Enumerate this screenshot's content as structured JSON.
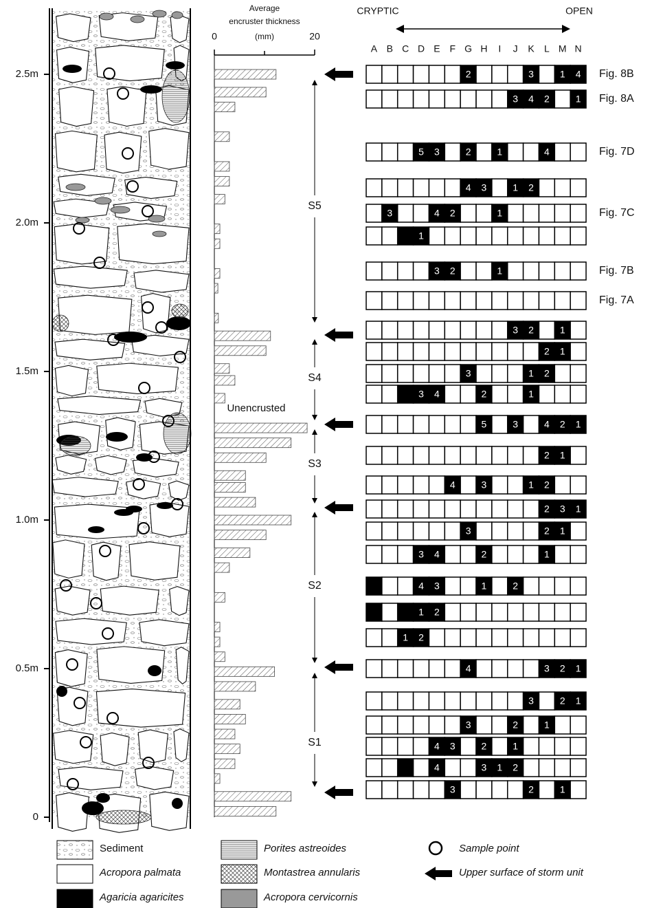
{
  "chart_data": {
    "type": "stratigraphic-figure",
    "depth_axis": {
      "ylim": [
        0,
        2.72
      ],
      "yticks": [
        {
          "value": 2.5,
          "label": "2.5m"
        },
        {
          "value": 2.0,
          "label": "2.0m"
        },
        {
          "value": 1.5,
          "label": "1.5m"
        },
        {
          "value": 1.0,
          "label": "1.0m"
        },
        {
          "value": 0.5,
          "label": "0.5m"
        },
        0
      ]
    },
    "bars": {
      "title_lines": [
        "Average",
        "encruster thickness",
        "(mm)"
      ],
      "xlim": [
        0,
        20
      ],
      "xticks": [
        0,
        20
      ],
      "depths": [
        2.5,
        2.44,
        2.39,
        2.29,
        2.19,
        2.14,
        2.08,
        1.98,
        1.93,
        1.83,
        1.78,
        1.68,
        1.62,
        1.57,
        1.51,
        1.47,
        1.41,
        1.31,
        1.26,
        1.21,
        1.15,
        1.11,
        1.06,
        1.0,
        0.95,
        0.89,
        0.84,
        0.74,
        0.64,
        0.59,
        0.54,
        0.49,
        0.44,
        0.38,
        0.33,
        0.28,
        0.23,
        0.18,
        0.13,
        0.07,
        0.02
      ],
      "values": [
        12.3,
        10.3,
        4.1,
        3.0,
        3.0,
        3.0,
        2.1,
        1.1,
        1.1,
        1.1,
        0.7,
        0.8,
        11.2,
        10.3,
        3.0,
        4.1,
        2.1,
        18.5,
        15.3,
        10.3,
        6.2,
        6.2,
        8.2,
        15.3,
        10.3,
        7.1,
        3.0,
        2.1,
        1.1,
        1.1,
        2.1,
        12.0,
        8.2,
        5.1,
        6.2,
        4.1,
        5.1,
        4.1,
        1.1,
        15.3,
        12.3
      ],
      "annotation": "Unencrusted"
    },
    "grid": {
      "left_label": "CRYPTIC",
      "right_label": "OPEN",
      "columns": [
        "A",
        "B",
        "C",
        "D",
        "E",
        "F",
        "G",
        "H",
        "I",
        "J",
        "K",
        "L",
        "M",
        "N"
      ],
      "rows": [
        {
          "label": "Fig. 8B",
          "black": [
            "G",
            "K",
            "M",
            "N"
          ],
          "ranks": {
            "G": 2,
            "K": 3,
            "M": 1,
            "N": 4
          }
        },
        {
          "label": "Fig. 8A",
          "black": [
            "J",
            "K",
            "L",
            "N"
          ],
          "ranks": {
            "J": 3,
            "K": 4,
            "L": 2,
            "N": 1
          }
        },
        {
          "label": "Fig. 7D",
          "black": [
            "D",
            "E",
            "G",
            "I",
            "L"
          ],
          "ranks": {
            "D": 5,
            "E": 3,
            "G": 2,
            "I": 1,
            "L": 4
          }
        },
        {
          "black": [
            "G",
            "H",
            "J",
            "K"
          ],
          "ranks": {
            "G": 4,
            "H": 3,
            "J": 1,
            "K": 2
          }
        },
        {
          "label": "Fig. 7C",
          "black": [
            "B",
            "E",
            "F",
            "I"
          ],
          "ranks": {
            "B": 3,
            "E": 4,
            "F": 2,
            "I": 1
          }
        },
        {
          "black": [
            "C",
            "D"
          ],
          "ranks": {
            "D": 1
          }
        },
        {
          "label": "Fig. 7B",
          "black": [
            "E",
            "F",
            "I"
          ],
          "ranks": {
            "E": 3,
            "F": 2,
            "I": 1
          }
        },
        {
          "label": "Fig. 7A",
          "black": [],
          "ranks": {}
        },
        {
          "black": [
            "J",
            "K",
            "M"
          ],
          "ranks": {
            "J": 3,
            "K": 2,
            "M": 1
          }
        },
        {
          "black": [
            "L",
            "M"
          ],
          "ranks": {
            "L": 2,
            "M": 1
          }
        },
        {
          "black": [
            "G",
            "K",
            "L"
          ],
          "ranks": {
            "G": 3,
            "K": 1,
            "L": 2
          }
        },
        {
          "black": [
            "C",
            "D",
            "E",
            "H",
            "K"
          ],
          "ranks": {
            "D": 3,
            "E": 4,
            "H": 2,
            "K": 1
          }
        },
        {
          "black": [
            "H",
            "J",
            "L",
            "M",
            "N"
          ],
          "ranks": {
            "H": 5,
            "J": 3,
            "L": 4,
            "M": 2,
            "N": 1
          }
        },
        {
          "black": [
            "L",
            "M"
          ],
          "ranks": {
            "L": 2,
            "M": 1
          }
        },
        {
          "black": [
            "F",
            "H",
            "K",
            "L"
          ],
          "ranks": {
            "F": 4,
            "H": 3,
            "K": 1,
            "L": 2
          }
        },
        {
          "black": [
            "L",
            "M",
            "N"
          ],
          "ranks": {
            "L": 2,
            "M": 3,
            "N": 1
          }
        },
        {
          "black": [
            "G",
            "L",
            "M"
          ],
          "ranks": {
            "G": 3,
            "L": 2,
            "M": 1
          }
        },
        {
          "black": [
            "D",
            "E",
            "H",
            "L"
          ],
          "ranks": {
            "D": 3,
            "E": 4,
            "H": 2,
            "L": 1
          }
        },
        {
          "black": [
            "A",
            "D",
            "E",
            "H",
            "J"
          ],
          "ranks": {
            "D": 4,
            "E": 3,
            "H": 1,
            "J": 2
          }
        },
        {
          "black": [
            "A",
            "C",
            "D",
            "E"
          ],
          "ranks": {
            "D": 1,
            "E": 2
          }
        },
        {
          "black": [
            "C",
            "D"
          ],
          "ranks": {
            "C": 1,
            "D": 2
          }
        },
        {
          "black": [
            "G",
            "L",
            "M",
            "N"
          ],
          "ranks": {
            "G": 4,
            "L": 3,
            "M": 2,
            "N": 1
          }
        },
        {
          "black": [
            "K",
            "M",
            "N"
          ],
          "ranks": {
            "K": 3,
            "M": 2,
            "N": 1
          }
        },
        {
          "black": [
            "G",
            "J",
            "L"
          ],
          "ranks": {
            "G": 3,
            "J": 2,
            "L": 1
          }
        },
        {
          "black": [
            "E",
            "F",
            "H",
            "J"
          ],
          "ranks": {
            "E": 4,
            "F": 3,
            "H": 2,
            "J": 1
          }
        },
        {
          "black": [
            "C",
            "E",
            "H",
            "I",
            "J"
          ],
          "ranks": {
            "E": 4,
            "H": 3,
            "I": 1,
            "J": 2
          }
        },
        {
          "black": [
            "F",
            "K",
            "M"
          ],
          "ranks": {
            "F": 3,
            "K": 2,
            "M": 1
          }
        }
      ]
    },
    "units": [
      "S5",
      "S4",
      "S3",
      "S2",
      "S1"
    ],
    "legend": [
      "Sediment",
      "Acropora palmata",
      "Agaricia agaricites",
      "Porites astreoides",
      "Montastrea annularis",
      "Acropora cervicornis",
      "Sample point",
      "Upper surface of storm unit"
    ]
  }
}
